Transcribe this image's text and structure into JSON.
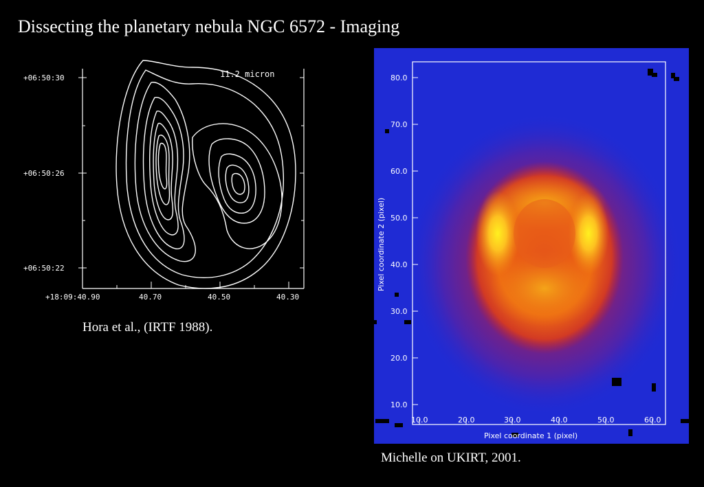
{
  "slide": {
    "title": "Dissecting the planetary nebula NGC 6572 - Imaging",
    "left_caption": "Hora et al., (IRTF 1988).",
    "right_caption": "Michelle on UKIRT, 2001."
  },
  "contour_plot": {
    "band_label": "11.2 micron",
    "y_ticks": [
      "+06:50:30",
      "+06:50:26",
      "+06:50:22"
    ],
    "x_ticks": [
      "+18:09:40.90",
      "40.70",
      "40.50",
      "40.30"
    ]
  },
  "image_plot": {
    "xlabel": "Pixel coordinate 1 (pixel)",
    "ylabel": "Pixel coordinate 2 (pixel)",
    "x_ticks": [
      "10.0",
      "20.0",
      "30.0",
      "40.0",
      "50.0",
      "60.0"
    ],
    "y_ticks": [
      "80.0",
      "70.0",
      "60.0",
      "50.0",
      "40.0",
      "30.0",
      "20.0",
      "10.0"
    ],
    "background_color": "#1f2bd4"
  }
}
